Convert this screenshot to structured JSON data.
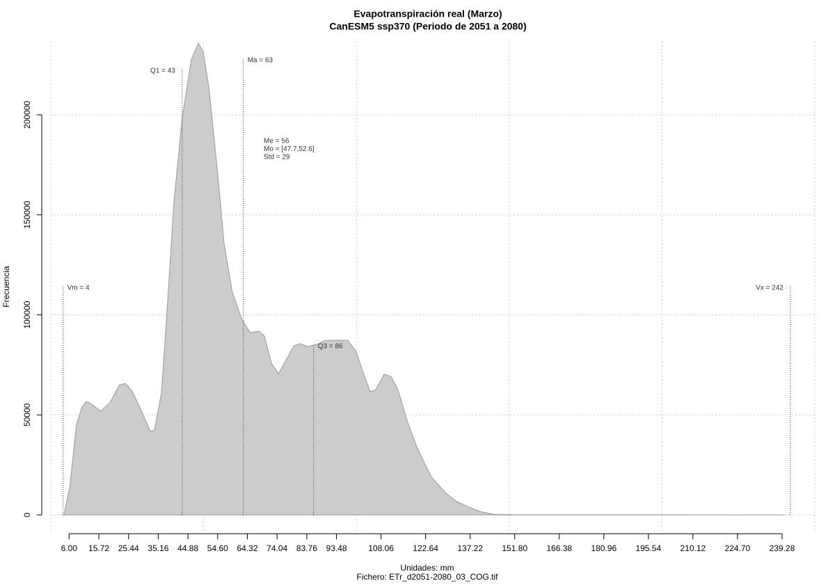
{
  "chart_data": {
    "type": "area",
    "title": "Evapotranspiración real (Marzo)",
    "subtitle": "CanESM5 ssp370 (Periodo de 2051 a 2080)",
    "xlabel": "Unidades: mm",
    "caption": "Fichero: ETr_d2051-2080_03_COG.tif",
    "ylabel": "Frecuencia",
    "color": "#cccccc",
    "line_color": "#999999",
    "x": [
      4.3,
      6.2,
      8.4,
      10.2,
      11.6,
      13.0,
      16.4,
      19.4,
      22.5,
      24.4,
      26.6,
      29.6,
      32.6,
      33.9,
      36.2,
      38.0,
      40.3,
      43.0,
      46.0,
      48.3,
      49.9,
      51.7,
      54.4,
      56.7,
      59.4,
      62.6,
      65.3,
      68.1,
      69.9,
      72.2,
      74.5,
      76.7,
      79.5,
      81.7,
      84.0,
      87.0,
      89.9,
      97.2,
      99.9,
      101.8,
      104.5,
      106.3,
      109.1,
      111.3,
      113.6,
      116.6,
      120.0,
      124.5,
      129.1,
      132.5,
      135.9,
      140.5,
      145.0,
      151.9,
      240.2
    ],
    "y": [
      0,
      13900,
      45200,
      53900,
      56700,
      55700,
      51800,
      56300,
      65000,
      65700,
      61900,
      52200,
      41700,
      42400,
      60900,
      100900,
      156500,
      198300,
      227800,
      235800,
      231300,
      213900,
      173900,
      135700,
      111300,
      97400,
      91100,
      91800,
      89400,
      75800,
      70600,
      76500,
      84500,
      85600,
      84200,
      85200,
      87300,
      87300,
      81700,
      73000,
      61600,
      62600,
      70300,
      69200,
      62600,
      47000,
      33000,
      19100,
      11100,
      7000,
      4500,
      1700,
      300,
      100,
      0
    ],
    "xlim": [
      0,
      250
    ],
    "ylim": [
      -8700,
      236500
    ],
    "xticks": [
      {
        "value": 6,
        "label": "6.00"
      },
      15.72,
      25.44,
      35.16,
      44.88,
      {
        "value": 54.6,
        "label": "54.60"
      },
      64.32,
      74.04,
      83.76,
      93.48,
      108.06,
      122.64,
      137.22,
      {
        "value": 151.8,
        "label": "151.80"
      },
      166.38,
      180.96,
      195.54,
      210.12,
      {
        "value": 224.7,
        "label": "224.70"
      },
      239.28
    ],
    "yticks": [
      0,
      50000,
      100000,
      150000,
      200000
    ],
    "xgrid": [
      0,
      50,
      100,
      150,
      200,
      250
    ],
    "grid": true,
    "annotations": [
      {
        "label": "Vm = 4",
        "x": 4
      },
      {
        "label": "Q1 = 43",
        "x": 43
      },
      {
        "label": "Ma = 63",
        "x": 63
      },
      {
        "label": "Q3 = 86",
        "x": 86
      },
      {
        "label": "Vx = 242",
        "x": 242
      }
    ],
    "stats": [
      "Me = 56",
      "Mo = [47.7,52.6]",
      "Std = 29"
    ]
  }
}
